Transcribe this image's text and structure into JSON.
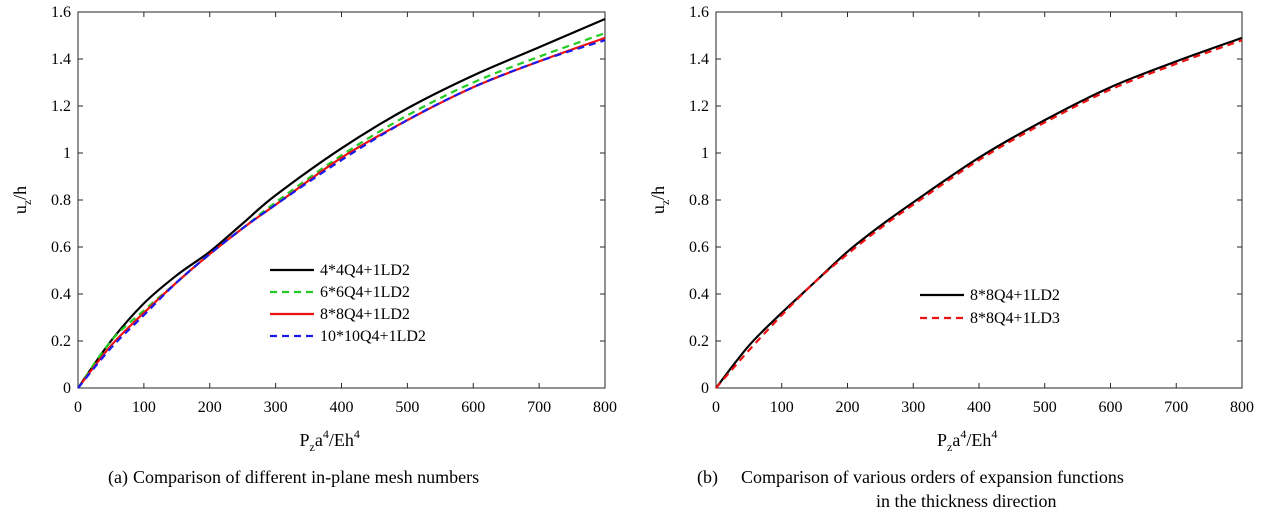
{
  "chart_data": [
    {
      "type": "line",
      "xlabel": {
        "base": "P",
        "sub": "z",
        "mid": "a",
        "sup": "4",
        "tail": "/Eh",
        "sup2": "4"
      },
      "ylabel": {
        "base": "u",
        "sub": "z",
        "tail": "/h"
      },
      "xlim": [
        0,
        800
      ],
      "ylim": [
        0,
        1.6
      ],
      "xticks": [
        "0",
        "100",
        "200",
        "300",
        "400",
        "500",
        "600",
        "700",
        "800"
      ],
      "yticks": [
        "0",
        "0.2",
        "0.4",
        "0.6",
        "0.8",
        "1",
        "1.2",
        "1.4",
        "1.6"
      ],
      "grid": false,
      "legend_position": "center",
      "series": [
        {
          "name": "4*4Q4+1LD2",
          "color": "#000000",
          "dash": "solid",
          "x": [
            0,
            50,
            100,
            150,
            200,
            250,
            300,
            400,
            500,
            600,
            700,
            800
          ],
          "y": [
            0,
            0.2,
            0.36,
            0.48,
            0.58,
            0.7,
            0.82,
            1.02,
            1.19,
            1.33,
            1.45,
            1.57
          ]
        },
        {
          "name": "6*6Q4+1LD2",
          "color": "#22cc22",
          "dash": "dashed",
          "x": [
            0,
            50,
            100,
            150,
            200,
            250,
            300,
            400,
            500,
            600,
            700,
            800
          ],
          "y": [
            0,
            0.2,
            0.33,
            0.45,
            0.57,
            0.68,
            0.79,
            0.99,
            1.16,
            1.3,
            1.41,
            1.51
          ]
        },
        {
          "name": "8*8Q4+1LD2",
          "color": "#ee1111",
          "dash": "solid",
          "x": [
            0,
            50,
            100,
            150,
            200,
            250,
            300,
            400,
            500,
            600,
            700,
            800
          ],
          "y": [
            0,
            0.18,
            0.32,
            0.45,
            0.57,
            0.68,
            0.78,
            0.98,
            1.14,
            1.28,
            1.39,
            1.49
          ]
        },
        {
          "name": "10*10Q4+1LD2",
          "color": "#1a1aee",
          "dash": "dashed",
          "x": [
            0,
            50,
            100,
            150,
            200,
            250,
            300,
            400,
            500,
            600,
            700,
            800
          ],
          "y": [
            0,
            0.17,
            0.31,
            0.45,
            0.57,
            0.68,
            0.78,
            0.97,
            1.14,
            1.28,
            1.39,
            1.48
          ]
        }
      ],
      "caption": {
        "label": "(a)",
        "text": "Comparison of different in-plane mesh numbers",
        "text2": ""
      }
    },
    {
      "type": "line",
      "xlabel": {
        "base": "P",
        "sub": "z",
        "mid": "a",
        "sup": "4",
        "tail": "/Eh",
        "sup2": "4"
      },
      "ylabel": {
        "base": "u",
        "sub": "z",
        "tail": "/h"
      },
      "xlim": [
        0,
        800
      ],
      "ylim": [
        0,
        1.6
      ],
      "xticks": [
        "0",
        "100",
        "200",
        "300",
        "400",
        "500",
        "600",
        "700",
        "800"
      ],
      "yticks": [
        "0",
        "0.2",
        "0.4",
        "0.6",
        "0.8",
        "1",
        "1.2",
        "1.4",
        "1.6"
      ],
      "grid": false,
      "legend_position": "center-right",
      "series": [
        {
          "name": "8*8Q4+1LD2",
          "color": "#000000",
          "dash": "solid",
          "x": [
            0,
            50,
            100,
            150,
            200,
            250,
            300,
            400,
            500,
            600,
            700,
            800
          ],
          "y": [
            0,
            0.18,
            0.32,
            0.45,
            0.58,
            0.69,
            0.79,
            0.98,
            1.14,
            1.28,
            1.39,
            1.49
          ]
        },
        {
          "name": "8*8Q4+1LD3",
          "color": "#ee1111",
          "dash": "dashed",
          "x": [
            0,
            50,
            100,
            150,
            200,
            250,
            300,
            400,
            500,
            600,
            700,
            800
          ],
          "y": [
            0,
            0.16,
            0.31,
            0.45,
            0.57,
            0.68,
            0.78,
            0.97,
            1.13,
            1.27,
            1.38,
            1.48
          ]
        }
      ],
      "caption": {
        "label": "(b)",
        "text": "Comparison of various orders of expansion functions",
        "text2": "in the thickness direction"
      }
    }
  ]
}
